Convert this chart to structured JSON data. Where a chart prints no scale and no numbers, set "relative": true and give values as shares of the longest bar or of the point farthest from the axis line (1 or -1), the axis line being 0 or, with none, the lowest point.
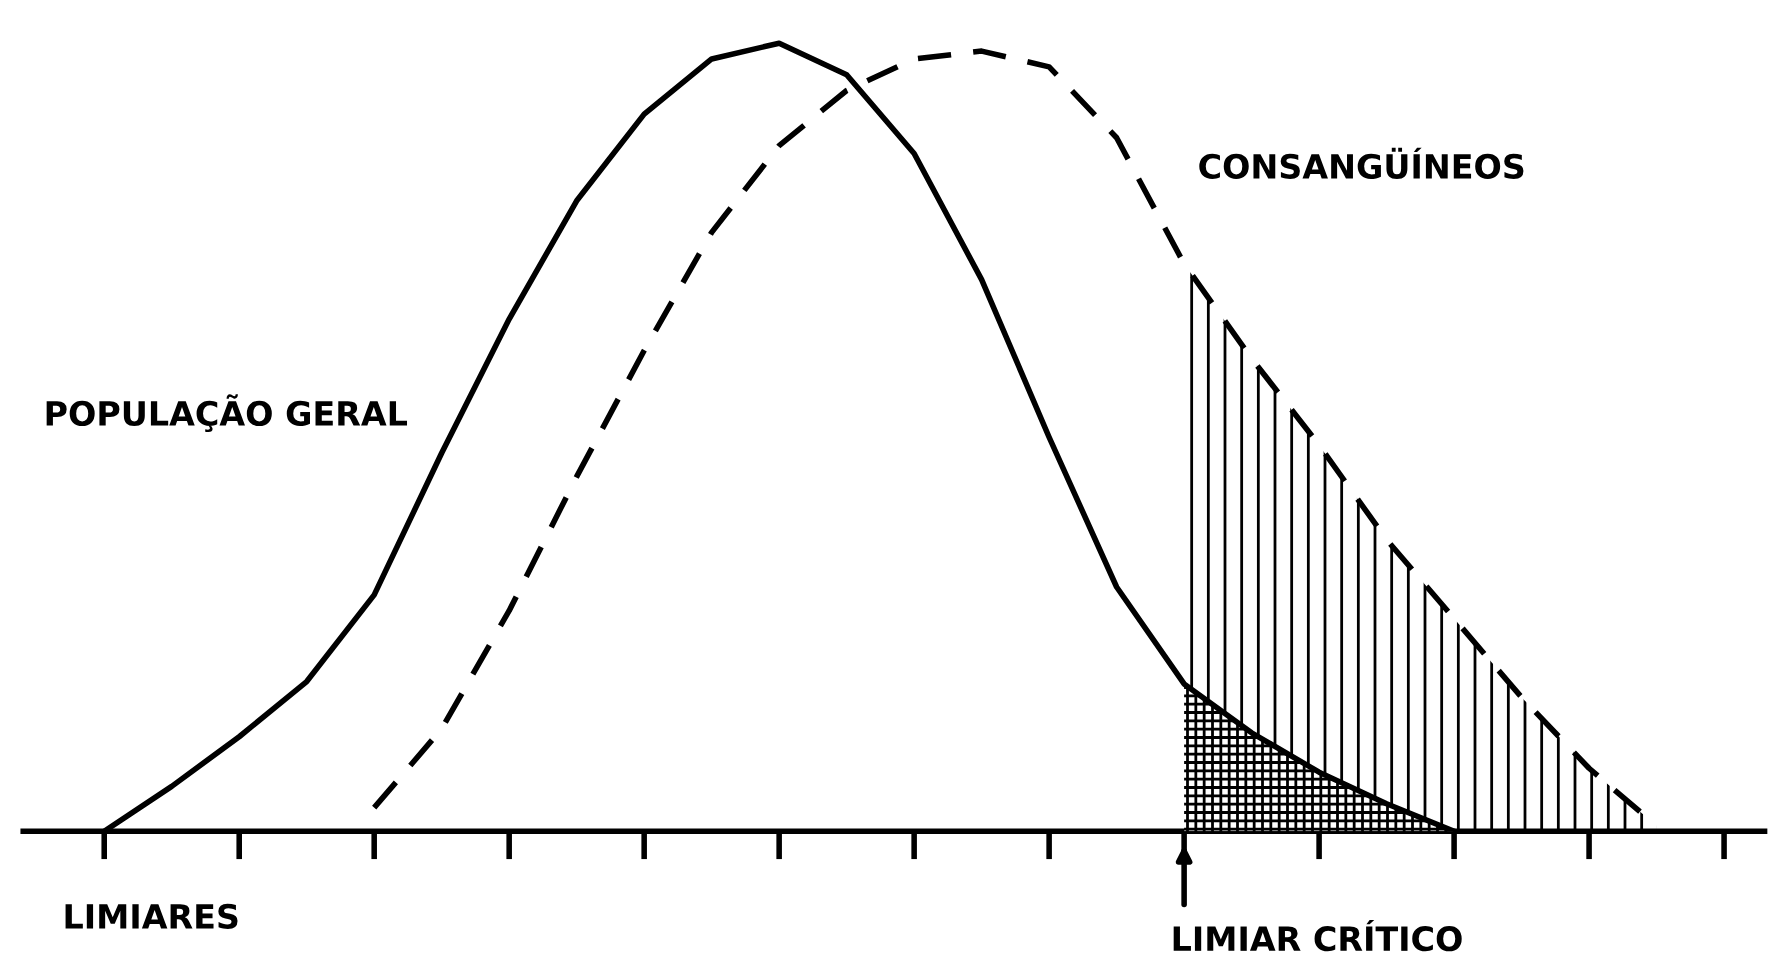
{
  "chart_data": {
    "type": "line",
    "relative": true,
    "grid": false,
    "marker": "none",
    "categories": [
      null,
      null,
      null,
      null,
      null,
      null,
      null,
      null,
      null,
      null,
      null,
      null,
      null,
      null,
      null,
      null,
      null,
      null,
      null,
      null,
      null,
      null,
      null,
      null,
      null
    ],
    "series": [
      {
        "name": "POPULAÇÃO GERAL",
        "color": "#000000",
        "line_style": "solid",
        "values": [
          0,
          0.057,
          0.12,
          0.19,
          0.3,
          0.48,
          0.65,
          0.8,
          0.91,
          0.98,
          1.0,
          0.96,
          0.86,
          0.7,
          0.5,
          0.31,
          0.187,
          0.125,
          0.075,
          0.035,
          0,
          null,
          null,
          null,
          null
        ]
      },
      {
        "name": "CONSANGÜÍNEOS",
        "color": "#000000",
        "line_style": "dashed",
        "values": [
          null,
          null,
          null,
          null,
          0.03,
          0.13,
          0.28,
          0.45,
          0.61,
          0.76,
          0.87,
          0.94,
          0.98,
          0.99,
          0.97,
          0.88,
          0.72,
          0.6,
          0.49,
          0.37,
          0.27,
          0.17,
          0.08,
          0.007,
          null
        ]
      },
      {
        "type": "area",
        "color": "#000000",
        "values": [
          null,
          null,
          null,
          null,
          null,
          null,
          null,
          null,
          null,
          null,
          null,
          null,
          null,
          null,
          null,
          null,
          0.187,
          0.125,
          0.075,
          0.035,
          0,
          null,
          null,
          null,
          null
        ]
      },
      {
        "type": "area",
        "color": "#000000",
        "values": [
          null,
          null,
          null,
          null,
          null,
          null,
          null,
          null,
          null,
          null,
          null,
          null,
          null,
          null,
          null,
          null,
          0.72,
          0.6,
          0.49,
          0.37,
          0.27,
          0.17,
          0.08,
          0.007,
          null
        ]
      }
    ],
    "annotations": [
      "LIMIARES",
      "LIMIAR CRÍTICO"
    ]
  }
}
